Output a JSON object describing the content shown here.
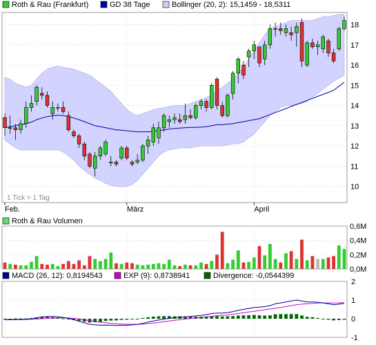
{
  "legend_price": [
    {
      "label": "Roth & Rau (Frankfurt)",
      "color": "#33cc33"
    },
    {
      "label": "GD 38 Tage",
      "color": "#0000aa"
    },
    {
      "label": "Bollinger (20, 2): 15,1459 - 18,5311",
      "color": "#ccccff"
    }
  ],
  "legend_volume": [
    {
      "label": "Roth & Rau Volumen",
      "color": "#66dd66"
    }
  ],
  "legend_macd": [
    {
      "label": "MACD (26, 12): 0,8194543",
      "color": "#000099"
    },
    {
      "label": "EXP (9): 0,8738941",
      "color": "#cc00cc"
    },
    {
      "label": "Divergence: -0,0544399",
      "color": "#006600"
    }
  ],
  "tick_note": "1 Tick = 1 Tag",
  "x_labels": [
    "Feb.",
    "März",
    "April"
  ],
  "price_axis": [
    "18",
    "17",
    "16",
    "15",
    "14",
    "13",
    "12",
    "11",
    "10"
  ],
  "volume_axis": [
    "0,6M",
    "0,4M",
    "0,2M",
    "0,0M"
  ],
  "macd_axis": [
    "2",
    "1",
    "0",
    "-1"
  ],
  "colors": {
    "up": "#33cc33",
    "down": "#dd3333",
    "neutral": "#bbbbbb",
    "band": "#ccccff",
    "ma": "#000099",
    "macd": "#000099",
    "signal": "#cc00cc",
    "div": "#006600",
    "grid": "#cccccc"
  },
  "chart_data": [
    {
      "type": "candlestick",
      "title": "Roth & Rau (Frankfurt)",
      "ylim": [
        9.2,
        18.6
      ],
      "x_ticks": [
        {
          "label": "Feb.",
          "index": 0
        },
        {
          "label": "März",
          "index": 23
        },
        {
          "label": "April",
          "index": 47
        }
      ],
      "candles": [
        {
          "o": 13.4,
          "h": 13.6,
          "l": 12.5,
          "c": 12.9
        },
        {
          "o": 12.9,
          "h": 13.5,
          "l": 12.6,
          "c": 12.9
        },
        {
          "o": 12.9,
          "h": 13.1,
          "l": 12.3,
          "c": 12.8
        },
        {
          "o": 12.8,
          "h": 13.3,
          "l": 12.6,
          "c": 13.1
        },
        {
          "o": 13.1,
          "h": 14.2,
          "l": 12.9,
          "c": 13.9
        },
        {
          "o": 13.9,
          "h": 14.5,
          "l": 13.7,
          "c": 14.1
        },
        {
          "o": 14.2,
          "h": 15.0,
          "l": 14.0,
          "c": 14.9
        },
        {
          "o": 14.6,
          "h": 14.9,
          "l": 14.3,
          "c": 14.5
        },
        {
          "o": 14.5,
          "h": 14.7,
          "l": 13.9,
          "c": 14.0
        },
        {
          "o": 13.6,
          "h": 14.2,
          "l": 13.3,
          "c": 13.9
        },
        {
          "o": 13.9,
          "h": 14.1,
          "l": 13.7,
          "c": 13.9
        },
        {
          "o": 13.9,
          "h": 14.2,
          "l": 13.6,
          "c": 13.7
        },
        {
          "o": 13.5,
          "h": 13.7,
          "l": 12.7,
          "c": 12.8
        },
        {
          "o": 12.7,
          "h": 12.8,
          "l": 12.4,
          "c": 12.5
        },
        {
          "o": 12.5,
          "h": 12.6,
          "l": 11.9,
          "c": 12.1
        },
        {
          "o": 12.1,
          "h": 12.2,
          "l": 11.3,
          "c": 11.5
        },
        {
          "o": 11.6,
          "h": 11.7,
          "l": 10.9,
          "c": 11.0
        },
        {
          "o": 10.9,
          "h": 11.7,
          "l": 10.5,
          "c": 11.5
        },
        {
          "o": 11.5,
          "h": 12.0,
          "l": 11.3,
          "c": 11.9
        },
        {
          "o": 11.6,
          "h": 12.3,
          "l": 11.5,
          "c": 12.2
        },
        {
          "o": 11.2,
          "h": 11.5,
          "l": 11.0,
          "c": 11.2
        },
        {
          "o": 11.2,
          "h": 11.3,
          "l": 11.0,
          "c": 11.1
        },
        {
          "o": 11.4,
          "h": 12.0,
          "l": 11.3,
          "c": 11.9
        },
        {
          "o": 11.9,
          "h": 12.0,
          "l": 11.3,
          "c": 11.4
        },
        {
          "o": 11.2,
          "h": 11.3,
          "l": 11.0,
          "c": 11.1
        },
        {
          "o": 11.2,
          "h": 11.6,
          "l": 11.1,
          "c": 11.3
        },
        {
          "o": 11.3,
          "h": 12.1,
          "l": 11.2,
          "c": 12.0
        },
        {
          "o": 12.0,
          "h": 12.5,
          "l": 11.6,
          "c": 12.3
        },
        {
          "o": 12.2,
          "h": 13.1,
          "l": 12.0,
          "c": 12.9
        },
        {
          "o": 12.4,
          "h": 13.2,
          "l": 12.1,
          "c": 12.9
        },
        {
          "o": 12.9,
          "h": 13.6,
          "l": 12.7,
          "c": 13.5
        },
        {
          "o": 13.2,
          "h": 13.5,
          "l": 12.9,
          "c": 13.3
        },
        {
          "o": 13.3,
          "h": 13.6,
          "l": 13.1,
          "c": 13.4
        },
        {
          "o": 13.3,
          "h": 13.6,
          "l": 13.1,
          "c": 13.2
        },
        {
          "o": 13.3,
          "h": 14.1,
          "l": 13.1,
          "c": 13.5
        },
        {
          "o": 13.5,
          "h": 13.8,
          "l": 13.3,
          "c": 13.4
        },
        {
          "o": 13.4,
          "h": 14.1,
          "l": 13.3,
          "c": 14.0
        },
        {
          "o": 14.0,
          "h": 14.3,
          "l": 13.8,
          "c": 14.2
        },
        {
          "o": 14.2,
          "h": 14.3,
          "l": 13.7,
          "c": 13.9
        },
        {
          "o": 13.9,
          "h": 15.1,
          "l": 13.8,
          "c": 15.0
        },
        {
          "o": 15.3,
          "h": 15.4,
          "l": 13.8,
          "c": 14.0
        },
        {
          "o": 14.0,
          "h": 14.2,
          "l": 13.4,
          "c": 13.5
        },
        {
          "o": 13.5,
          "h": 14.6,
          "l": 13.4,
          "c": 14.5
        },
        {
          "o": 14.6,
          "h": 15.7,
          "l": 14.3,
          "c": 15.6
        },
        {
          "o": 15.6,
          "h": 16.4,
          "l": 15.1,
          "c": 16.3
        },
        {
          "o": 16.0,
          "h": 16.2,
          "l": 15.3,
          "c": 15.5
        },
        {
          "o": 16.4,
          "h": 16.8,
          "l": 15.9,
          "c": 16.7
        },
        {
          "o": 16.7,
          "h": 17.2,
          "l": 16.3,
          "c": 17.0
        },
        {
          "o": 16.9,
          "h": 16.9,
          "l": 15.9,
          "c": 16.1
        },
        {
          "o": 16.3,
          "h": 17.2,
          "l": 16.0,
          "c": 17.0
        },
        {
          "o": 17.0,
          "h": 18.0,
          "l": 16.8,
          "c": 17.8
        },
        {
          "o": 17.8,
          "h": 18.1,
          "l": 17.4,
          "c": 17.8
        },
        {
          "o": 17.8,
          "h": 18.1,
          "l": 17.5,
          "c": 17.7
        },
        {
          "o": 17.6,
          "h": 18.0,
          "l": 17.4,
          "c": 17.8
        },
        {
          "o": 17.6,
          "h": 17.9,
          "l": 17.2,
          "c": 17.5
        },
        {
          "o": 17.6,
          "h": 18.1,
          "l": 16.9,
          "c": 17.9
        },
        {
          "o": 18.1,
          "h": 18.3,
          "l": 15.9,
          "c": 16.2
        },
        {
          "o": 16.0,
          "h": 17.2,
          "l": 15.9,
          "c": 17.1
        },
        {
          "o": 17.1,
          "h": 17.3,
          "l": 16.8,
          "c": 16.9
        },
        {
          "o": 16.9,
          "h": 17.2,
          "l": 16.5,
          "c": 17.0
        },
        {
          "o": 16.8,
          "h": 17.5,
          "l": 16.6,
          "c": 17.4
        },
        {
          "o": 17.2,
          "h": 17.3,
          "l": 16.4,
          "c": 16.6
        },
        {
          "o": 16.6,
          "h": 16.8,
          "l": 16.1,
          "c": 16.2
        },
        {
          "o": 16.8,
          "h": 17.9,
          "l": 16.7,
          "c": 17.8
        },
        {
          "o": 17.8,
          "h": 18.4,
          "l": 17.7,
          "c": 18.2
        }
      ],
      "ma": [
        12.9,
        12.95,
        13.0,
        13.05,
        13.1,
        13.18,
        13.3,
        13.38,
        13.45,
        13.5,
        13.52,
        13.5,
        13.45,
        13.38,
        13.3,
        13.2,
        13.1,
        13.0,
        12.95,
        12.9,
        12.85,
        12.8,
        12.78,
        12.75,
        12.72,
        12.7,
        12.7,
        12.7,
        12.72,
        12.75,
        12.8,
        12.83,
        12.86,
        12.88,
        12.9,
        12.92,
        12.92,
        12.93,
        12.95,
        13.0,
        13.05,
        13.05,
        13.08,
        13.1,
        13.15,
        13.2,
        13.25,
        13.3,
        13.35,
        13.45,
        13.55,
        13.65,
        13.75,
        13.85,
        13.95,
        14.05,
        14.15,
        14.25,
        14.35,
        14.45,
        14.55,
        14.65,
        14.75,
        14.95,
        15.15
      ],
      "band_upper": [
        15.4,
        15.3,
        15.1,
        15.0,
        14.9,
        15.0,
        15.3,
        15.6,
        15.8,
        15.9,
        15.95,
        15.9,
        15.85,
        15.8,
        15.7,
        15.6,
        15.5,
        15.3,
        15.1,
        14.9,
        14.7,
        14.4,
        14.1,
        13.8,
        13.6,
        13.5,
        13.6,
        13.7,
        13.8,
        13.85,
        13.9,
        13.95,
        14.0,
        14.0,
        14.0,
        14.1,
        14.2,
        14.3,
        14.4,
        14.5,
        14.7,
        14.9,
        15.1,
        15.3,
        15.6,
        15.9,
        16.3,
        16.7,
        17.1,
        17.5,
        17.8,
        17.9,
        18.0,
        18.1,
        18.2,
        18.2,
        18.2,
        18.2,
        18.2,
        18.3,
        18.4,
        18.4,
        18.45,
        18.5,
        18.5
      ],
      "band_lower": [
        12.3,
        12.1,
        11.9,
        11.8,
        11.8,
        11.8,
        11.8,
        11.8,
        11.8,
        11.8,
        11.8,
        11.7,
        11.5,
        11.3,
        11.0,
        10.8,
        10.6,
        10.4,
        10.3,
        10.15,
        10.05,
        10.0,
        9.97,
        10.0,
        10.1,
        10.3,
        10.6,
        10.9,
        11.2,
        11.5,
        11.7,
        11.8,
        11.85,
        11.9,
        11.9,
        11.9,
        11.95,
        12.0,
        12.0,
        12.0,
        12.0,
        12.0,
        12.05,
        12.1,
        12.1,
        12.2,
        12.4,
        12.6,
        12.9,
        13.2,
        13.5,
        13.7,
        13.9,
        14.0,
        14.0,
        14.05,
        14.1,
        14.2,
        14.4,
        14.6,
        14.8,
        15.0,
        15.2,
        15.35,
        15.5
      ]
    },
    {
      "type": "bar",
      "title": "Roth & Rau Volumen",
      "ylim": [
        0,
        0.6
      ],
      "values": [
        0.09,
        0.07,
        0.06,
        0.05,
        0.05,
        0.1,
        0.18,
        0.07,
        0.06,
        0.07,
        0.04,
        0.07,
        0.11,
        0.07,
        0.12,
        0.05,
        0.18,
        0.14,
        0.11,
        0.14,
        0.23,
        0.08,
        0.07,
        0.09,
        0.08,
        0.06,
        0.05,
        0.06,
        0.07,
        0.08,
        0.07,
        0.13,
        0.05,
        0.04,
        0.06,
        0.05,
        0.05,
        0.09,
        0.07,
        0.11,
        0.2,
        0.52,
        0.08,
        0.13,
        0.26,
        0.09,
        0.1,
        0.16,
        0.32,
        0.19,
        0.35,
        0.14,
        0.09,
        0.22,
        0.25,
        0.14,
        0.41,
        0.12,
        0.18,
        0.14,
        0.14,
        0.16,
        0.18,
        0.33,
        0.28
      ],
      "neutral_index": [
        59
      ]
    },
    {
      "type": "line",
      "title": "MACD (26, 12)",
      "ylim": [
        -1,
        2
      ],
      "macd": [
        -0.05,
        -0.05,
        -0.04,
        -0.04,
        -0.03,
        0.0,
        0.05,
        0.1,
        0.12,
        0.12,
        0.1,
        0.07,
        0.02,
        -0.05,
        -0.14,
        -0.22,
        -0.3,
        -0.33,
        -0.35,
        -0.34,
        -0.35,
        -0.36,
        -0.35,
        -0.35,
        -0.33,
        -0.3,
        -0.25,
        -0.18,
        -0.12,
        -0.07,
        -0.02,
        0.02,
        0.05,
        0.08,
        0.1,
        0.12,
        0.15,
        0.18,
        0.22,
        0.28,
        0.3,
        0.3,
        0.33,
        0.38,
        0.45,
        0.5,
        0.55,
        0.6,
        0.62,
        0.65,
        0.7,
        0.8,
        0.85,
        0.9,
        0.95,
        1.0,
        0.95,
        0.9,
        0.9,
        0.88,
        0.85,
        0.8,
        0.75,
        0.78,
        0.82
      ],
      "signal": [
        -0.05,
        -0.05,
        -0.05,
        -0.05,
        -0.04,
        -0.03,
        -0.02,
        0.0,
        0.02,
        0.04,
        0.05,
        0.05,
        0.04,
        0.02,
        -0.02,
        -0.06,
        -0.1,
        -0.14,
        -0.18,
        -0.22,
        -0.25,
        -0.27,
        -0.29,
        -0.3,
        -0.3,
        -0.3,
        -0.29,
        -0.26,
        -0.23,
        -0.2,
        -0.16,
        -0.12,
        -0.08,
        -0.05,
        -0.02,
        0.01,
        0.04,
        0.07,
        0.1,
        0.13,
        0.16,
        0.18,
        0.2,
        0.24,
        0.28,
        0.32,
        0.36,
        0.4,
        0.44,
        0.48,
        0.52,
        0.56,
        0.6,
        0.65,
        0.7,
        0.75,
        0.78,
        0.8,
        0.82,
        0.84,
        0.85,
        0.85,
        0.84,
        0.85,
        0.87
      ],
      "divergence": [
        0.0,
        0.0,
        0.01,
        0.01,
        0.01,
        0.03,
        0.07,
        0.1,
        0.1,
        0.08,
        0.05,
        0.02,
        -0.02,
        -0.07,
        -0.12,
        -0.16,
        -0.2,
        -0.19,
        -0.17,
        -0.12,
        -0.1,
        -0.09,
        -0.06,
        -0.05,
        -0.03,
        0.0,
        0.04,
        0.08,
        0.11,
        0.13,
        0.14,
        0.14,
        0.13,
        0.13,
        0.12,
        0.11,
        0.11,
        0.11,
        0.12,
        0.15,
        0.14,
        0.12,
        0.13,
        0.14,
        0.17,
        0.18,
        0.19,
        0.2,
        0.18,
        0.17,
        0.18,
        0.24,
        0.25,
        0.25,
        0.25,
        0.25,
        0.17,
        0.1,
        0.08,
        0.04,
        0.0,
        -0.05,
        -0.09,
        -0.07,
        -0.05
      ]
    }
  ]
}
